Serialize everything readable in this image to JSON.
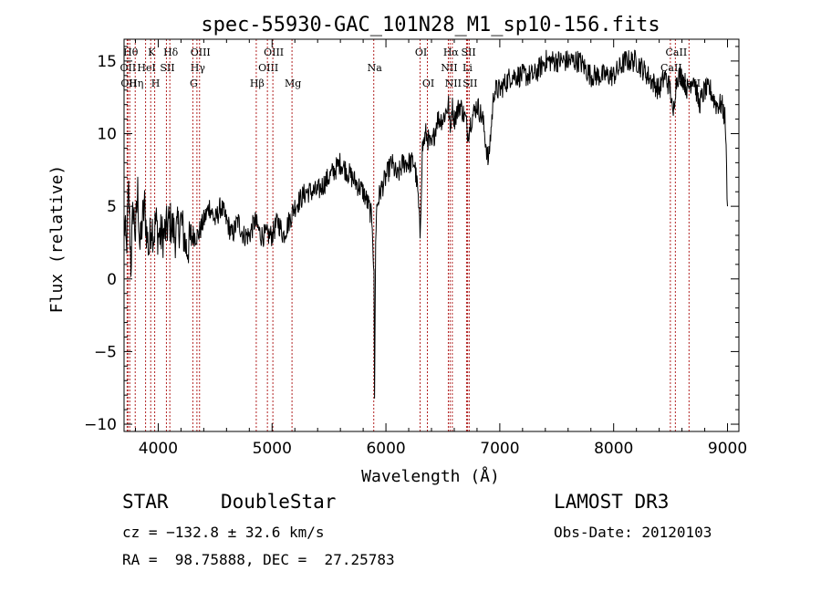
{
  "chart_data": {
    "type": "line",
    "title": "spec-55930-GAC_101N28_M1_sp10-156.fits",
    "xlabel": "Wavelength (Å)",
    "ylabel": "Flux (relative)",
    "xlim": [
      3700,
      9100
    ],
    "ylim": [
      -10.5,
      16.5
    ],
    "xticks": [
      4000,
      5000,
      6000,
      7000,
      8000,
      9000
    ],
    "yticks": [
      -10,
      -5,
      0,
      5,
      10,
      15
    ],
    "x_tick_labels": [
      "4000",
      "5000",
      "6000",
      "7000",
      "8000",
      "9000"
    ],
    "y_tick_labels": [
      "−10",
      "−5",
      "0",
      "5",
      "10",
      "15"
    ],
    "series": [
      {
        "name": "spectrum",
        "x": [
          3700,
          3720,
          3740,
          3760,
          3780,
          3800,
          3820,
          3840,
          3860,
          3880,
          3900,
          3920,
          3940,
          3960,
          3980,
          4000,
          4050,
          4100,
          4150,
          4200,
          4250,
          4300,
          4350,
          4400,
          4450,
          4500,
          4550,
          4600,
          4650,
          4700,
          4750,
          4800,
          4850,
          4900,
          4950,
          5000,
          5050,
          5100,
          5150,
          5200,
          5300,
          5400,
          5500,
          5600,
          5700,
          5800,
          5850,
          5880,
          5895,
          5900,
          5905,
          5910,
          5920,
          5950,
          6000,
          6050,
          6100,
          6150,
          6200,
          6250,
          6280,
          6300,
          6320,
          6350,
          6400,
          6450,
          6500,
          6550,
          6565,
          6580,
          6600,
          6650,
          6700,
          6720,
          6750,
          6800,
          6850,
          6900,
          6950,
          7000,
          7100,
          7200,
          7300,
          7400,
          7500,
          7600,
          7700,
          7800,
          7900,
          8000,
          8100,
          8200,
          8300,
          8400,
          8450,
          8500,
          8520,
          8540,
          8560,
          8600,
          8650,
          8700,
          8750,
          8800,
          8850,
          8900,
          8950,
          8980,
          9000
        ],
        "values": [
          4,
          2,
          6,
          1,
          5,
          3,
          6,
          2,
          4,
          5,
          3,
          2,
          4,
          3,
          4,
          3,
          3,
          4,
          3,
          4,
          2,
          3,
          3,
          4,
          5,
          4,
          5,
          4,
          3,
          4,
          3,
          3,
          4,
          3,
          3,
          3,
          4,
          3,
          4,
          5,
          6,
          6,
          7,
          8,
          7,
          6,
          5,
          4,
          0,
          -8,
          -3,
          3,
          5,
          6,
          7,
          8,
          7,
          8,
          8,
          8,
          6,
          3,
          9,
          10,
          9,
          11,
          11,
          12,
          10,
          12,
          11,
          12,
          11,
          10,
          11,
          12,
          11,
          8,
          13,
          13,
          14,
          14,
          14,
          15,
          15,
          15,
          15,
          14,
          14,
          14,
          15,
          15,
          14,
          13,
          14,
          13,
          11,
          13,
          14,
          14,
          13,
          14,
          12,
          13,
          13,
          12,
          12,
          11,
          5
        ]
      }
    ],
    "lines": [
      {
        "w": 3750,
        "label": "Hθ",
        "row": 0
      },
      {
        "w": 3727,
        "label": "OII",
        "row": 1
      },
      {
        "w": 3734,
        "label": "OII",
        "row": 2
      },
      {
        "w": 3798,
        "label": "Hη",
        "row": 2
      },
      {
        "w": 3889,
        "label": "HeI",
        "row": 1
      },
      {
        "w": 3934,
        "label": "K",
        "row": 0
      },
      {
        "w": 3969,
        "label": "H",
        "row": 2
      },
      {
        "w": 4072,
        "label": "SII",
        "row": 1
      },
      {
        "w": 4102,
        "label": "Hδ",
        "row": 0
      },
      {
        "w": 4340,
        "label": "Hγ",
        "row": 1
      },
      {
        "w": 4304,
        "label": "G",
        "row": 2
      },
      {
        "w": 4363,
        "label": "OIII",
        "row": 0
      },
      {
        "w": 4861,
        "label": "Hβ",
        "row": 2
      },
      {
        "w": 4959,
        "label": "OIII",
        "row": 1
      },
      {
        "w": 5007,
        "label": "OIII",
        "row": 0
      },
      {
        "w": 5175,
        "label": "Mg",
        "row": 2
      },
      {
        "w": 5893,
        "label": "Na",
        "row": 1
      },
      {
        "w": 6300,
        "label": "OI",
        "row": 0
      },
      {
        "w": 6364,
        "label": "OI",
        "row": 2
      },
      {
        "w": 6548,
        "label": "NII",
        "row": 1
      },
      {
        "w": 6563,
        "label": "Hα",
        "row": 0
      },
      {
        "w": 6583,
        "label": "NII",
        "row": 2
      },
      {
        "w": 6708,
        "label": "Li",
        "row": 1
      },
      {
        "w": 6717,
        "label": "SII",
        "row": 0
      },
      {
        "w": 6731,
        "label": "SII",
        "row": 2
      },
      {
        "w": 8498,
        "label": "CaII",
        "row": 1
      },
      {
        "w": 8542,
        "label": "CaII",
        "row": 0
      },
      {
        "w": 8662,
        "label": "CaII",
        "row": 2
      }
    ]
  },
  "info": {
    "class": "STAR",
    "subclass": "DoubleStar",
    "survey": "LAMOST DR3",
    "cz": "cz = −132.8 ± 32.6 km/s",
    "obs_date": "Obs-Date: 20120103",
    "radec": "RA =  98.75888, DEC =  27.25783"
  }
}
